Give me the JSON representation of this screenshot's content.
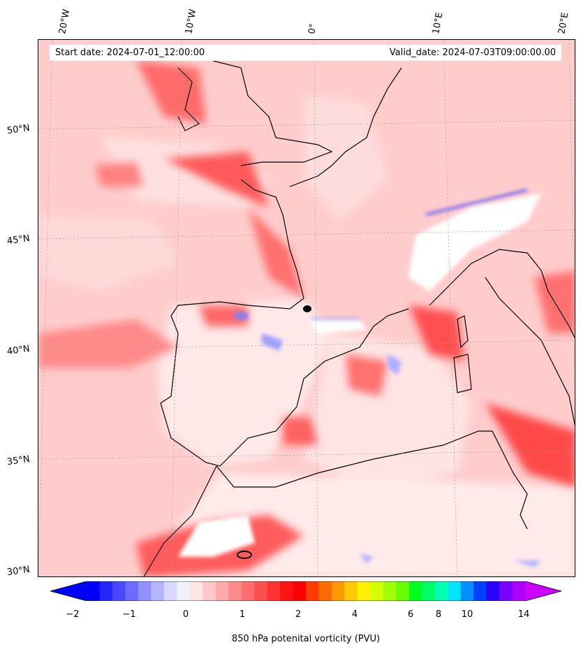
{
  "map": {
    "title_start": "Start date: 2024-07-01_12:00:00",
    "title_valid": "Valid_date: 2024-07-03T09:00:00.00",
    "lon_labels": [
      "20°W",
      "10°W",
      "0°",
      "10°E",
      "20°E"
    ],
    "lat_labels": [
      "50°N",
      "45°N",
      "40°N",
      "35°N",
      "30°N"
    ],
    "colorbar": {
      "title": "850 hPa potenital vorticity (PVU)",
      "ticks": [
        "−2",
        "−1",
        "0",
        "1",
        "2",
        "4",
        "6",
        "8",
        "10",
        "14"
      ],
      "colors": [
        "#0000ff",
        "#2424ff",
        "#4848ff",
        "#6c6cff",
        "#9090ff",
        "#b4b4ff",
        "#d8d8ff",
        "#f0f0ff",
        "#ffe4e4",
        "#ffc8c8",
        "#ffaaaa",
        "#ff8c8c",
        "#ff6e6e",
        "#ff5050",
        "#ff3232",
        "#ff1414",
        "#ff0000",
        "#ff3a00",
        "#ff6a00",
        "#ff9a00",
        "#ffc800",
        "#fff000",
        "#d4ff00",
        "#a0ff00",
        "#66ff00",
        "#00ff1e",
        "#00ff64",
        "#00ffb0",
        "#00e4ff",
        "#0090ff",
        "#0040ff",
        "#2a00ff",
        "#7a00ff",
        "#b000ff"
      ],
      "extend_low_color": "#0000ff",
      "extend_high_color": "#cc00ff"
    },
    "colors": {
      "background_pink": "#ffd0d0",
      "sea_light": "#ffe6e6",
      "strong_red": "#ff4040",
      "coast": "#000000"
    }
  }
}
